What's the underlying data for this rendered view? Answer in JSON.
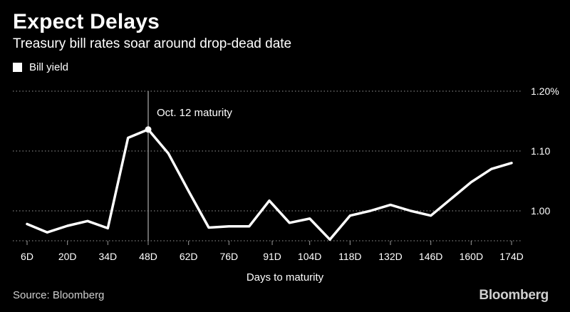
{
  "header": {
    "title": "Expect Delays",
    "subtitle": "Treasury bill rates soar around drop-dead date"
  },
  "footer": {
    "source": "Source: Bloomberg",
    "logo": "Bloomberg"
  },
  "colors": {
    "background": "#000000",
    "line": "#ffffff",
    "grid": "#9a9a9a",
    "text": "#ffffff"
  },
  "chart_data": {
    "type": "line",
    "title": "Expect Delays",
    "subtitle": "Treasury bill rates soar around drop-dead date",
    "xlabel": "Days to maturity",
    "ylabel": "",
    "ylim": [
      0.95,
      1.2
    ],
    "yticks": [
      1.0,
      1.1,
      1.2
    ],
    "ytick_labels": [
      "1.00",
      "1.10",
      "1.20%"
    ],
    "y_axis_side": "right",
    "grid": "horizontal dotted",
    "legend": "top-left",
    "xtick_labels": [
      "6D",
      "20D",
      "34D",
      "48D",
      "62D",
      "76D",
      "91D",
      "104D",
      "118D",
      "132D",
      "146D",
      "160D",
      "174D"
    ],
    "series": [
      {
        "name": "Bill yield",
        "x": [
          6,
          13,
          20,
          27,
          34,
          41,
          48,
          55,
          62,
          69,
          76,
          83,
          90,
          97,
          104,
          111,
          118,
          125,
          132,
          139,
          146,
          153,
          160,
          167,
          174
        ],
        "y": [
          0.978,
          0.964,
          0.975,
          0.983,
          0.971,
          1.122,
          1.136,
          1.096,
          1.033,
          0.972,
          0.974,
          0.974,
          1.017,
          0.98,
          0.987,
          0.952,
          0.992,
          1.0,
          1.01,
          1.0,
          0.992,
          1.02,
          1.048,
          1.07,
          1.08
        ]
      }
    ],
    "annotations": [
      {
        "text": "Oct. 12 maturity",
        "x": 48,
        "y": 1.136
      }
    ]
  }
}
